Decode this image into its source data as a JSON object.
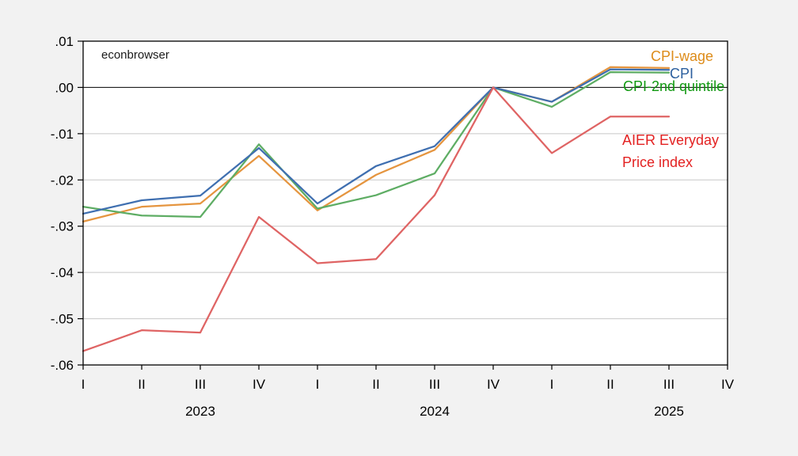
{
  "watermark": "econbrowser",
  "colors": {
    "background": "#f2f2f2",
    "plot_background": "#ffffff",
    "grid": "#c8c8c8",
    "zero_line": "#000000",
    "frame": "#000000",
    "axis_text": "#000000"
  },
  "chart_data": {
    "type": "line",
    "title": "",
    "xlabel": "",
    "ylabel": "",
    "ylim": [
      -0.06,
      0.01
    ],
    "grid": true,
    "legend_position": "inline-labels-right",
    "x_axis": {
      "quarter_labels": [
        "I",
        "II",
        "III",
        "IV",
        "I",
        "II",
        "III",
        "IV",
        "I",
        "II",
        "III",
        "IV"
      ],
      "year_labels": [
        "2023",
        "2024",
        "2025"
      ]
    },
    "y_axis": {
      "tick_values": [
        0.01,
        0.0,
        -0.01,
        -0.02,
        -0.03,
        -0.04,
        -0.05,
        -0.06
      ],
      "tick_labels": [
        ".01",
        ".00",
        "-.01",
        "-.02",
        "-.03",
        "-.04",
        "-.05",
        "-.06"
      ]
    },
    "categories": [
      "2023Q1",
      "2023Q2",
      "2023Q3",
      "2023Q4",
      "2024Q1",
      "2024Q2",
      "2024Q3",
      "2024Q4",
      "2025Q1",
      "2025Q2",
      "2025Q3"
    ],
    "series": [
      {
        "name": "CPI-wage",
        "label": "CPI-wage",
        "line_color": "#e5953f",
        "label_color": "#dd8c1a",
        "values": [
          -0.029,
          -0.0258,
          -0.0251,
          -0.0148,
          -0.0266,
          -0.0189,
          -0.0135,
          0.0,
          -0.0031,
          0.0044,
          0.0042
        ]
      },
      {
        "name": "CPI",
        "label": "CPI",
        "line_color": "#3f6fb0",
        "label_color": "#2c5f9e",
        "values": [
          -0.0273,
          -0.0244,
          -0.0234,
          -0.0131,
          -0.0251,
          -0.017,
          -0.0127,
          0.0,
          -0.0031,
          0.0039,
          0.0038
        ]
      },
      {
        "name": "CPI-2nd quintile",
        "label": "CPI-2nd quintile",
        "line_color": "#5ead64",
        "label_color": "#119911",
        "values": [
          -0.0258,
          -0.0277,
          -0.028,
          -0.0123,
          -0.0262,
          -0.0233,
          -0.0186,
          0.0,
          -0.0042,
          0.0033,
          0.0032
        ]
      },
      {
        "name": "AIER Everyday Price index",
        "label": "AIER Everyday Price index",
        "label_lines": [
          "AIER Everyday",
          "Price index"
        ],
        "line_color": "#df6464",
        "label_color": "#e32222",
        "values": [
          -0.057,
          -0.0525,
          -0.053,
          -0.028,
          -0.038,
          -0.0371,
          -0.0233,
          0.0,
          -0.0142,
          -0.0063,
          -0.0063
        ]
      }
    ]
  }
}
